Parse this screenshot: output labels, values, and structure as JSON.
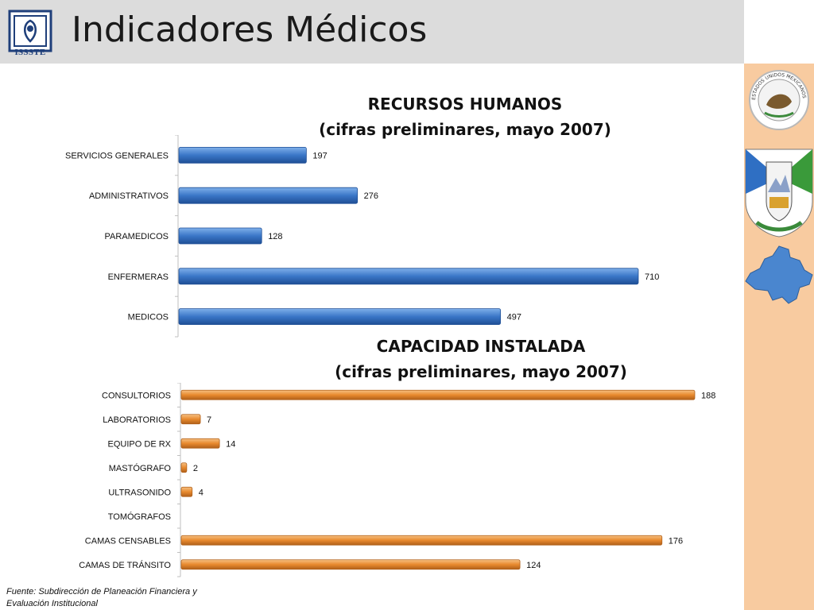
{
  "header": {
    "title": "Indicadores Médicos",
    "logo_text": "ISSSTE"
  },
  "charts_text": {
    "hr_title_line1": "RECURSOS HUMANOS",
    "hr_title_line2": "(cifras preliminares, mayo 2007)",
    "ci_title_line1": "CAPACIDAD INSTALADA",
    "ci_title_line2": "(cifras preliminares, mayo 2007)"
  },
  "footer": {
    "source_line1": "Fuente: Subdirección de Planeación Financiera y",
    "source_line2": "Evaluación Institucional"
  },
  "side_panel": {
    "seal_text": "ESTADOS UNIDOS MEXICANOS"
  },
  "colors": {
    "header_bg": "#dcdcdc",
    "side_panel_bg": "#f8cba0",
    "hr_bar": "#3a76c7",
    "ci_bar": "#e88a2e",
    "state_map": "#4a86cf"
  },
  "chart_data": [
    {
      "type": "bar",
      "orientation": "horizontal",
      "title": "RECURSOS HUMANOS (cifras preliminares, mayo 2007)",
      "categories": [
        "SERVICIOS GENERALES",
        "ADMINISTRATIVOS",
        "PARAMEDICOS",
        "ENFERMERAS",
        "MEDICOS"
      ],
      "values": [
        197,
        276,
        128,
        710,
        497
      ],
      "xlim": [
        0,
        760
      ],
      "grid": false,
      "legend": "none"
    },
    {
      "type": "bar",
      "orientation": "horizontal",
      "title": "CAPACIDAD INSTALADA (cifras preliminares, mayo 2007)",
      "categories": [
        "CONSULTORIOS",
        "LABORATORIOS",
        "EQUIPO DE RX",
        "MASTÓGRAFO",
        "ULTRASONIDO",
        "TOMÓGRAFOS",
        "CAMAS CENSABLES",
        "CAMAS DE TRÁNSITO"
      ],
      "values": [
        188,
        7,
        14,
        2,
        4,
        null,
        176,
        124
      ],
      "xlim": [
        0,
        200
      ],
      "grid": false,
      "legend": "none"
    }
  ]
}
